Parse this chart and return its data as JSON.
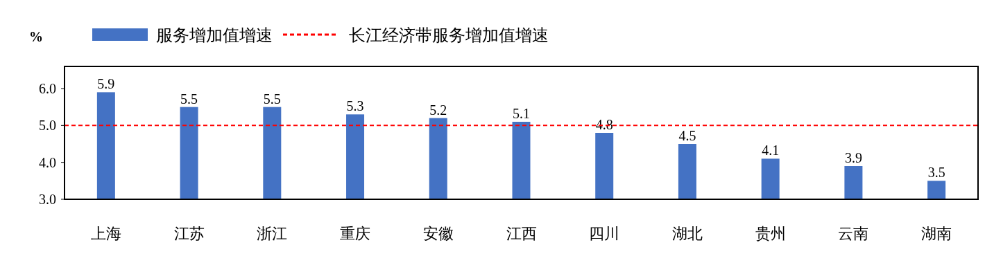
{
  "chart_data": {
    "type": "bar",
    "categories": [
      "上海",
      "江苏",
      "浙江",
      "重庆",
      "安徽",
      "江西",
      "四川",
      "湖北",
      "贵州",
      "云南",
      "湖南"
    ],
    "series": [
      {
        "name": "服务增加值增速",
        "color": "#4472c4",
        "values": [
          5.9,
          5.5,
          5.5,
          5.3,
          5.2,
          5.1,
          4.8,
          4.5,
          4.1,
          3.9,
          3.5
        ]
      }
    ],
    "ylabel": "%",
    "ylim": [
      3,
      6.6
    ],
    "yticks": [
      {
        "value": 3,
        "label": "3.0"
      },
      {
        "value": 4,
        "label": "4.0"
      },
      {
        "value": 5,
        "label": "5.0"
      },
      {
        "value": 6,
        "label": "6.0"
      }
    ],
    "ref_lines": [
      {
        "axis": "y",
        "value": 5,
        "label": "长江经济带服务增加值增速",
        "color": "#ff0000",
        "line_style": "dashed"
      }
    ],
    "data_labels": true,
    "legend": "top"
  }
}
